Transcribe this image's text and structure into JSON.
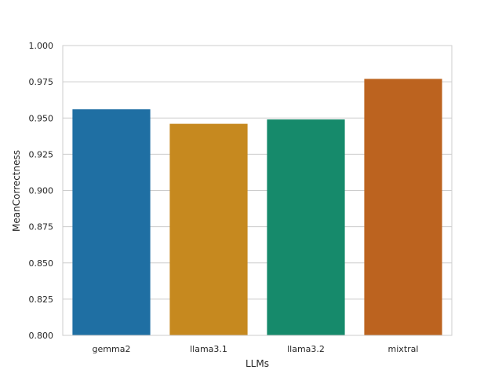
{
  "chart_data": {
    "type": "bar",
    "title": "",
    "xlabel": "LLMs",
    "ylabel": "MeanCorrectness",
    "categories": [
      "gemma2",
      "llama3.1",
      "llama3.2",
      "mixtral"
    ],
    "values": [
      0.956,
      0.946,
      0.949,
      0.977
    ],
    "colors": [
      "#1f6fa3",
      "#c6891f",
      "#168a6b",
      "#bc631f"
    ],
    "ylim": [
      0.8,
      1.0
    ],
    "yticks": [
      "0.800",
      "0.825",
      "0.850",
      "0.875",
      "0.900",
      "0.925",
      "0.950",
      "0.975",
      "1.000"
    ],
    "grid": "horizontal",
    "legend": "none"
  }
}
